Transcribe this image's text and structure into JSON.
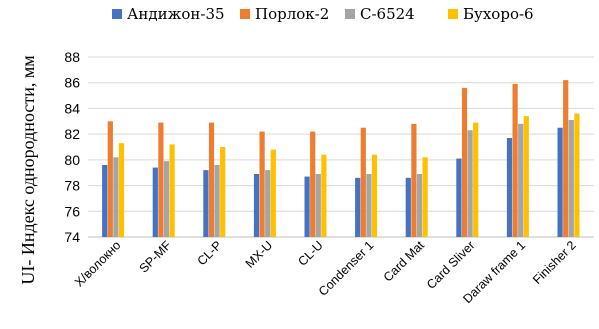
{
  "chart_data": {
    "type": "bar",
    "ylabel": "UI- Индекс однородности, мм",
    "ylim": [
      74,
      88
    ],
    "yticks": [
      74,
      76,
      78,
      80,
      82,
      84,
      86,
      88
    ],
    "grid": true,
    "legend_position": "top",
    "categories": [
      "Х/волокно",
      "SP-MF",
      "CL-P",
      "MX-U",
      "CL-U",
      "Condenser 1",
      "Card Mat",
      "Card Sliver",
      "Daraw frame 1",
      "Finisher 2"
    ],
    "series": [
      {
        "name": "Андижон-35",
        "color": "#4472c4",
        "values": [
          79.6,
          79.4,
          79.2,
          78.9,
          78.7,
          78.6,
          78.6,
          80.1,
          81.7,
          82.5
        ]
      },
      {
        "name": "Порлок-2",
        "color": "#ed7d31",
        "values": [
          83.0,
          82.9,
          82.9,
          82.2,
          82.2,
          82.5,
          82.8,
          85.6,
          85.9,
          86.2
        ]
      },
      {
        "name": "С-6524",
        "color": "#a5a5a5",
        "values": [
          80.2,
          79.9,
          79.6,
          79.2,
          78.9,
          78.9,
          78.9,
          82.3,
          82.8,
          83.1
        ]
      },
      {
        "name": "Бухоро-6",
        "color": "#ffc000",
        "values": [
          81.3,
          81.2,
          81.0,
          80.8,
          80.4,
          80.4,
          80.2,
          82.9,
          83.4,
          83.6
        ]
      }
    ]
  }
}
